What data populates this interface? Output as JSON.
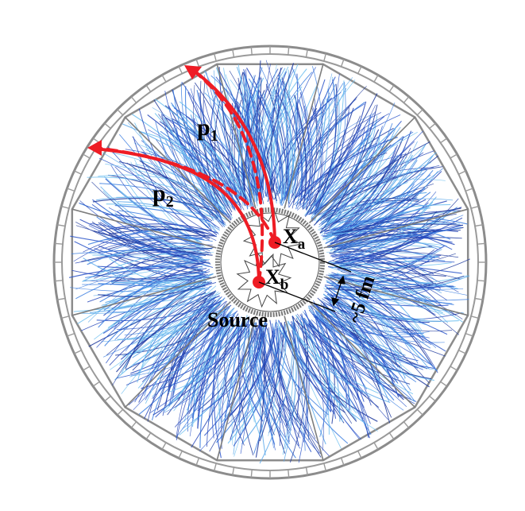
{
  "labels": {
    "p1": "p",
    "p1_sub": "1",
    "p2": "p",
    "p2_sub": "2",
    "xa": "X",
    "xa_sub": "a",
    "xb": "X",
    "xb_sub": "b",
    "source": "Source",
    "scale": "~5 fm"
  },
  "colors": {
    "background": "#ffffff",
    "track_palette": [
      "#1f3a9e",
      "#2b55c9",
      "#3d7fe0",
      "#5aa8ea",
      "#2746b8",
      "#6fc0f0"
    ],
    "path_red": "#ee1c24",
    "frame_gray": "#8c8c8c",
    "frame_light": "#d2d2d2",
    "source_ring": "#777777"
  }
}
